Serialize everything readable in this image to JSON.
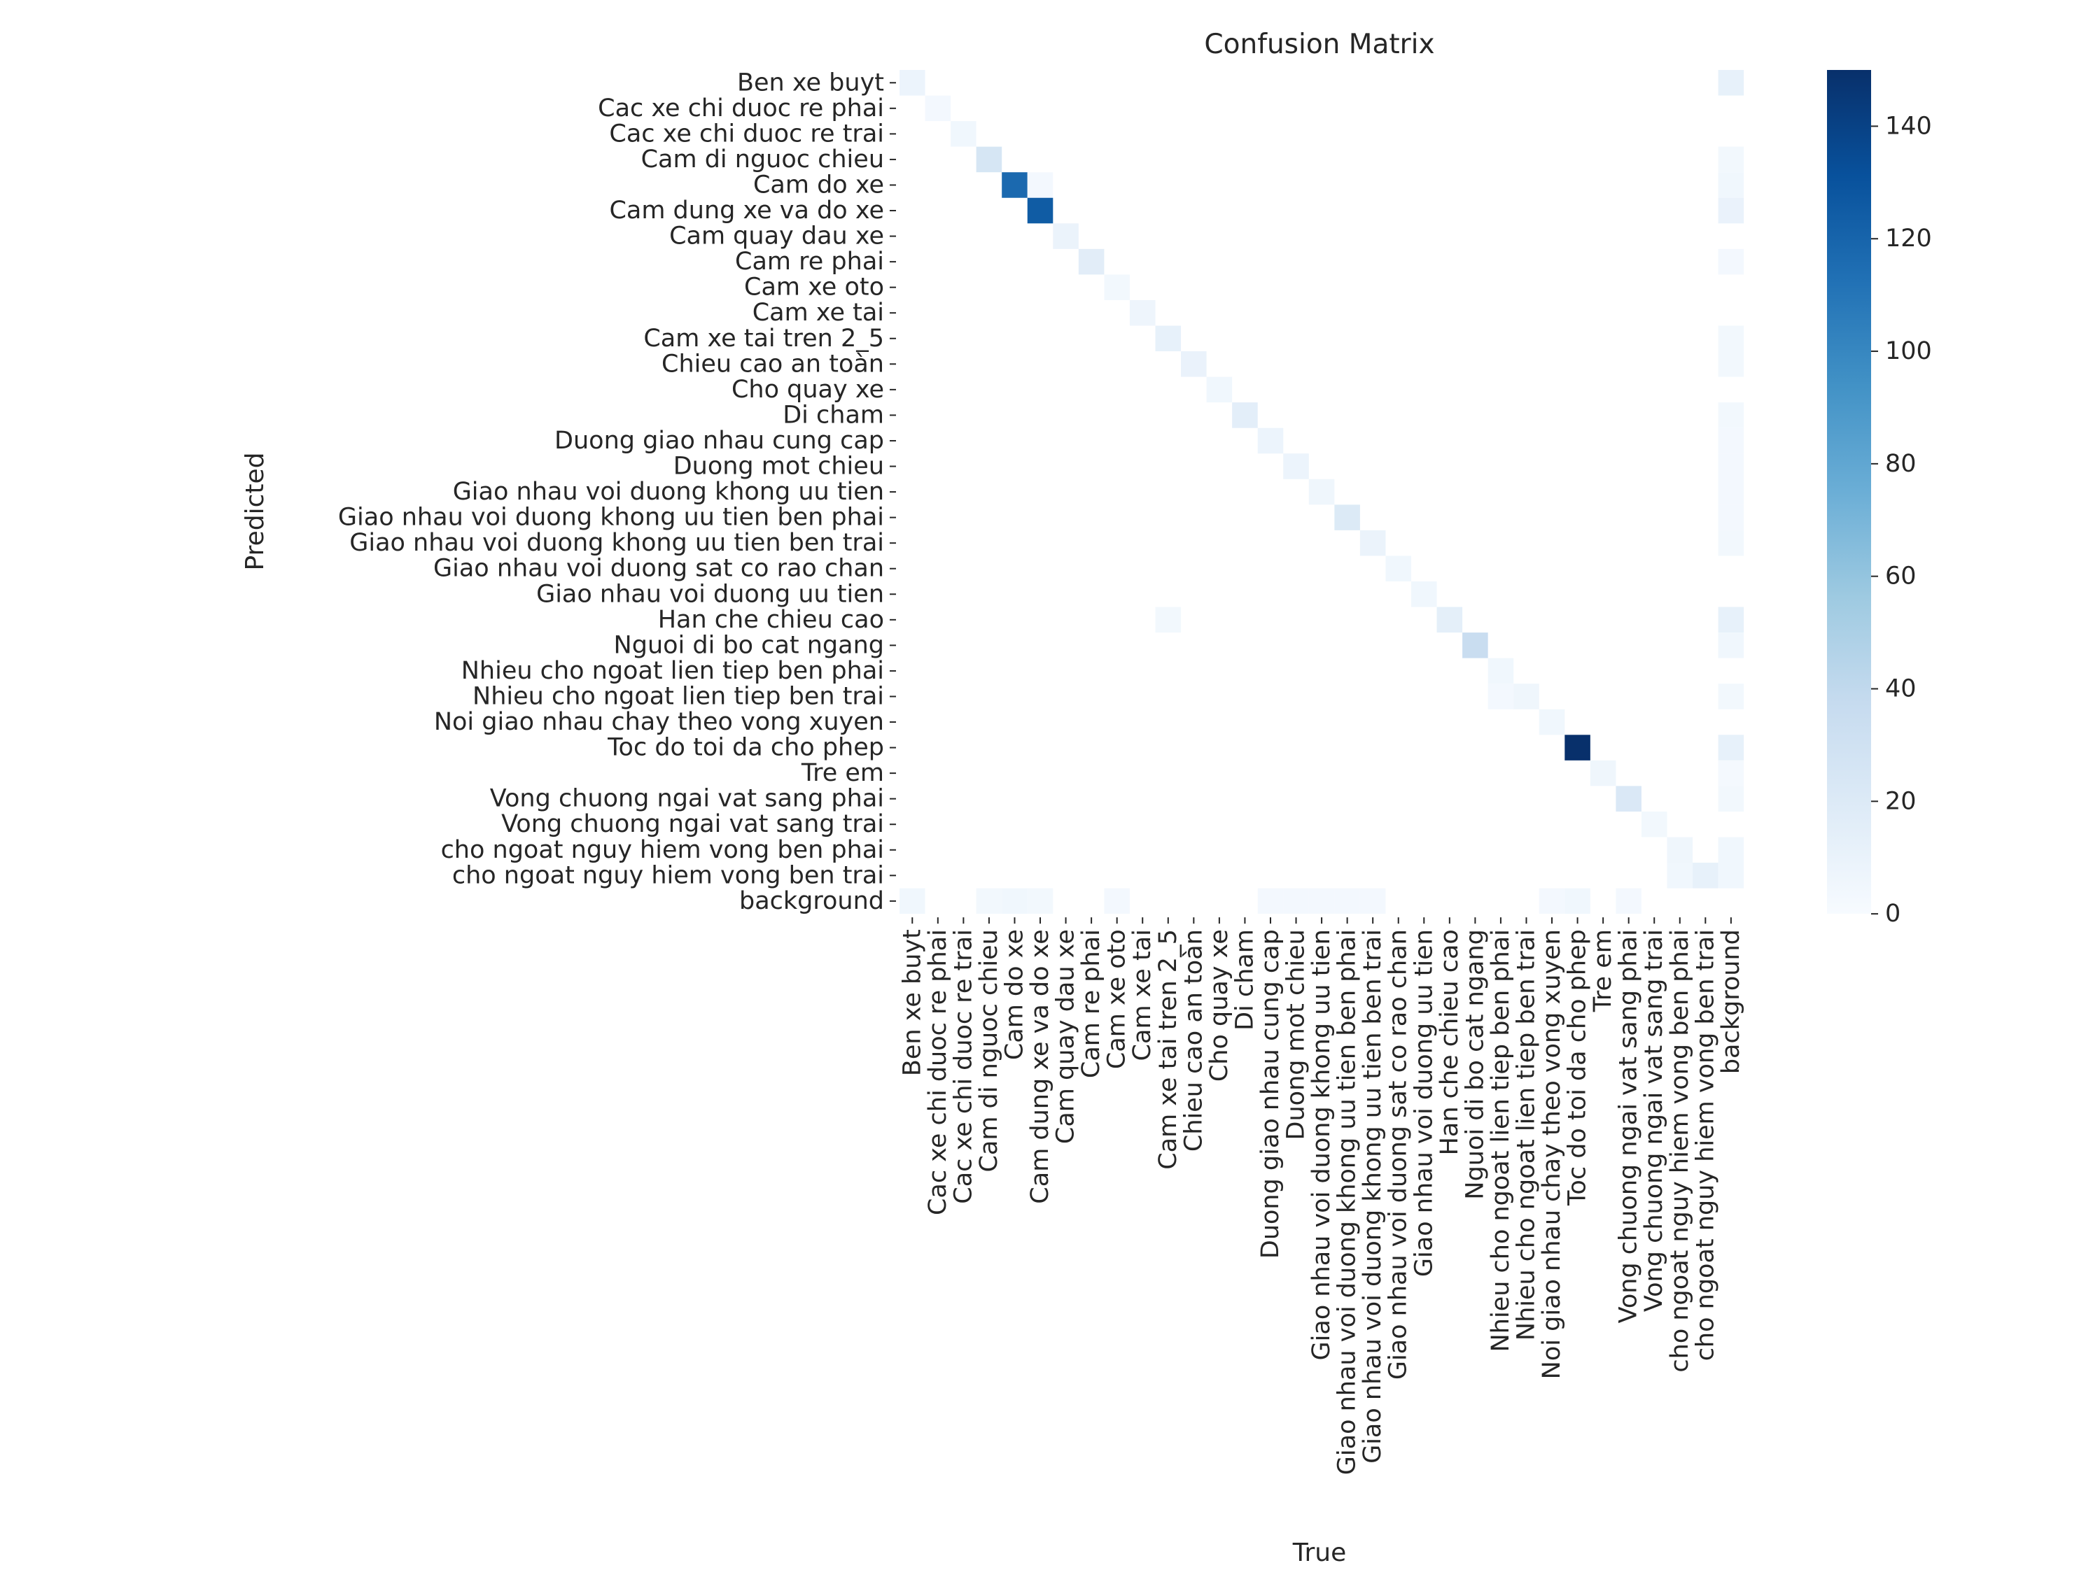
{
  "chart_data": {
    "type": "heatmap",
    "title": "Confusion Matrix",
    "xlabel": "True",
    "ylabel": "Predicted",
    "labels": [
      "Ben xe buyt",
      "Cac xe chi duoc re phai",
      "Cac xe chi duoc re trai",
      "Cam di nguoc chieu",
      "Cam do xe",
      "Cam dung xe va do xe",
      "Cam quay dau xe",
      "Cam re phai",
      "Cam xe oto",
      "Cam xe tai",
      "Cam xe tai tren 2_5",
      "Chieu cao an toàn",
      "Cho quay xe",
      "Di cham",
      "Duong giao nhau cung cap",
      "Duong mot chieu",
      "Giao nhau voi duong khong uu tien",
      "Giao nhau voi duong khong uu tien ben phai",
      "Giao nhau voi duong khong uu tien ben trai",
      "Giao nhau voi duong sat co rao chan",
      "Giao nhau voi duong uu tien",
      "Han che chieu cao",
      "Nguoi di bo cat ngang",
      "Nhieu cho ngoat lien tiep ben phai",
      "Nhieu cho ngoat lien tiep ben trai",
      "Noi giao nhau chay theo vong xuyen",
      "Toc do toi da cho phep",
      "Tre em",
      "Vong chuong ngai vat sang phai",
      "Vong chuong ngai vat sang trai",
      "cho ngoat nguy hiem vong ben phai",
      "cho ngoat nguy hiem vong ben trai",
      "background"
    ],
    "colorbar": {
      "min": 0,
      "max": 150,
      "ticks": [
        0,
        20,
        40,
        60,
        80,
        100,
        120,
        140
      ]
    },
    "colormap": [
      "#f7fbff",
      "#deebf7",
      "#c6dbef",
      "#9ecae1",
      "#6baed6",
      "#4292c6",
      "#2171b5",
      "#08519c",
      "#08306b"
    ],
    "cells": [
      {
        "row": 0,
        "col": 0,
        "value": 8
      },
      {
        "row": 0,
        "col": 32,
        "value": 12
      },
      {
        "row": 1,
        "col": 1,
        "value": 3
      },
      {
        "row": 2,
        "col": 2,
        "value": 5
      },
      {
        "row": 3,
        "col": 3,
        "value": 25
      },
      {
        "row": 3,
        "col": 32,
        "value": 4
      },
      {
        "row": 4,
        "col": 4,
        "value": 117
      },
      {
        "row": 4,
        "col": 5,
        "value": 3
      },
      {
        "row": 4,
        "col": 32,
        "value": 5
      },
      {
        "row": 5,
        "col": 5,
        "value": 125
      },
      {
        "row": 5,
        "col": 32,
        "value": 10
      },
      {
        "row": 6,
        "col": 6,
        "value": 9
      },
      {
        "row": 7,
        "col": 7,
        "value": 16
      },
      {
        "row": 7,
        "col": 32,
        "value": 3
      },
      {
        "row": 8,
        "col": 8,
        "value": 4
      },
      {
        "row": 9,
        "col": 9,
        "value": 7
      },
      {
        "row": 10,
        "col": 10,
        "value": 12
      },
      {
        "row": 10,
        "col": 32,
        "value": 4
      },
      {
        "row": 11,
        "col": 11,
        "value": 10
      },
      {
        "row": 11,
        "col": 32,
        "value": 4
      },
      {
        "row": 12,
        "col": 12,
        "value": 5
      },
      {
        "row": 13,
        "col": 13,
        "value": 15
      },
      {
        "row": 13,
        "col": 32,
        "value": 4
      },
      {
        "row": 14,
        "col": 14,
        "value": 8
      },
      {
        "row": 14,
        "col": 32,
        "value": 3
      },
      {
        "row": 15,
        "col": 15,
        "value": 8
      },
      {
        "row": 15,
        "col": 32,
        "value": 3
      },
      {
        "row": 16,
        "col": 16,
        "value": 6
      },
      {
        "row": 16,
        "col": 32,
        "value": 3
      },
      {
        "row": 17,
        "col": 17,
        "value": 20
      },
      {
        "row": 17,
        "col": 32,
        "value": 3
      },
      {
        "row": 18,
        "col": 18,
        "value": 9
      },
      {
        "row": 18,
        "col": 32,
        "value": 4
      },
      {
        "row": 19,
        "col": 19,
        "value": 5
      },
      {
        "row": 20,
        "col": 20,
        "value": 5
      },
      {
        "row": 21,
        "col": 10,
        "value": 4
      },
      {
        "row": 21,
        "col": 21,
        "value": 14
      },
      {
        "row": 21,
        "col": 32,
        "value": 12
      },
      {
        "row": 22,
        "col": 22,
        "value": 35
      },
      {
        "row": 22,
        "col": 32,
        "value": 5
      },
      {
        "row": 23,
        "col": 23,
        "value": 5
      },
      {
        "row": 24,
        "col": 23,
        "value": 3
      },
      {
        "row": 24,
        "col": 24,
        "value": 6
      },
      {
        "row": 24,
        "col": 32,
        "value": 4
      },
      {
        "row": 25,
        "col": 25,
        "value": 5
      },
      {
        "row": 26,
        "col": 26,
        "value": 150
      },
      {
        "row": 26,
        "col": 32,
        "value": 12
      },
      {
        "row": 27,
        "col": 27,
        "value": 6
      },
      {
        "row": 27,
        "col": 32,
        "value": 2
      },
      {
        "row": 28,
        "col": 28,
        "value": 22
      },
      {
        "row": 28,
        "col": 32,
        "value": 4
      },
      {
        "row": 29,
        "col": 29,
        "value": 4
      },
      {
        "row": 30,
        "col": 30,
        "value": 6
      },
      {
        "row": 30,
        "col": 32,
        "value": 5
      },
      {
        "row": 31,
        "col": 30,
        "value": 5
      },
      {
        "row": 31,
        "col": 31,
        "value": 12
      },
      {
        "row": 31,
        "col": 32,
        "value": 5
      },
      {
        "row": 32,
        "col": 0,
        "value": 5
      },
      {
        "row": 32,
        "col": 3,
        "value": 4
      },
      {
        "row": 32,
        "col": 4,
        "value": 5
      },
      {
        "row": 32,
        "col": 5,
        "value": 4
      },
      {
        "row": 32,
        "col": 8,
        "value": 3
      },
      {
        "row": 32,
        "col": 14,
        "value": 3
      },
      {
        "row": 32,
        "col": 15,
        "value": 3
      },
      {
        "row": 32,
        "col": 16,
        "value": 3
      },
      {
        "row": 32,
        "col": 17,
        "value": 3
      },
      {
        "row": 32,
        "col": 18,
        "value": 3
      },
      {
        "row": 32,
        "col": 25,
        "value": 3
      },
      {
        "row": 32,
        "col": 26,
        "value": 5
      },
      {
        "row": 32,
        "col": 28,
        "value": 3
      }
    ]
  }
}
